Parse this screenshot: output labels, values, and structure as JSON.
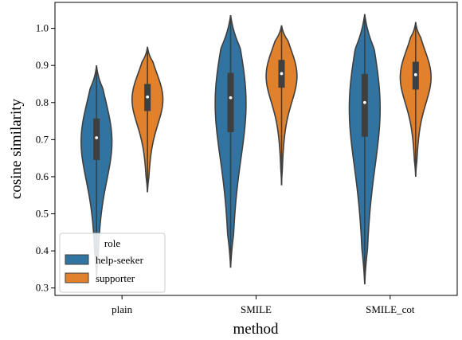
{
  "chart_data": {
    "type": "violin",
    "xlabel": "method",
    "ylabel": "cosine similarity",
    "ylim": [
      0.28,
      1.07
    ],
    "yticks": [
      "0.3",
      "0.4",
      "0.5",
      "0.6",
      "0.7",
      "0.8",
      "0.9",
      "1.0"
    ],
    "yticks_values": [
      0.3,
      0.4,
      0.5,
      0.6,
      0.7,
      0.8,
      0.9,
      1.0
    ],
    "categories": [
      "plain",
      "SMILE",
      "SMILE_cot"
    ],
    "grid": false,
    "legend": {
      "title": "role",
      "placement": "lower-left",
      "entries": [
        "help-seeker",
        "supporter"
      ]
    },
    "series": [
      {
        "name": "help-seeker",
        "color": "#3274a1",
        "stats": [
          {
            "category": "plain",
            "min": 0.33,
            "q1": 0.645,
            "median": 0.705,
            "q3": 0.757,
            "max": 0.9
          },
          {
            "category": "SMILE",
            "min": 0.355,
            "q1": 0.72,
            "median": 0.813,
            "q3": 0.88,
            "max": 1.035
          },
          {
            "category": "SMILE_cot",
            "min": 0.31,
            "q1": 0.708,
            "median": 0.8,
            "q3": 0.877,
            "max": 1.038
          }
        ]
      },
      {
        "name": "supporter",
        "color": "#e1812c",
        "stats": [
          {
            "category": "plain",
            "min": 0.558,
            "q1": 0.777,
            "median": 0.815,
            "q3": 0.85,
            "max": 0.95
          },
          {
            "category": "SMILE",
            "min": 0.577,
            "q1": 0.84,
            "median": 0.878,
            "q3": 0.915,
            "max": 1.008
          },
          {
            "category": "SMILE_cot",
            "min": 0.6,
            "q1": 0.835,
            "median": 0.875,
            "q3": 0.91,
            "max": 1.017
          }
        ]
      }
    ]
  }
}
